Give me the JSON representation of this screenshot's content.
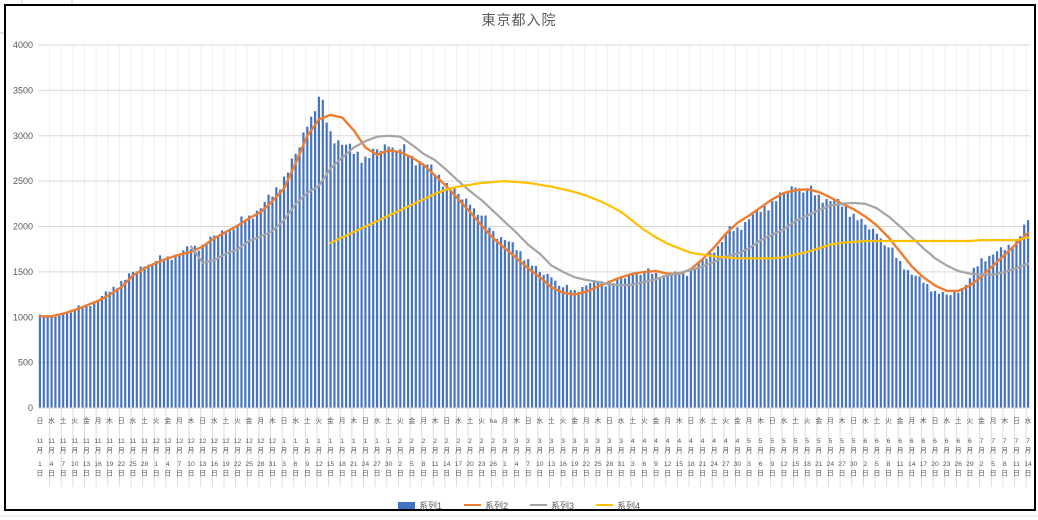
{
  "frame": {
    "background": "#ffffff",
    "border_color": "#000000",
    "gridline_color": "#d9d9d9",
    "minor_vline_color": "#f1f1f1",
    "axis_text_color": "#595959"
  },
  "chart": {
    "title": "東京都入院"
  },
  "chart_data": {
    "type": "bar",
    "title": "東京都入院",
    "ylim": [
      0,
      4000
    ],
    "y_tick_step": 500,
    "y_tick_labels": [
      "0",
      "500",
      "1000",
      "1500",
      "2000",
      "2500",
      "3000",
      "3500",
      "4000"
    ],
    "grid": true,
    "legend_position": "bottom",
    "x_note": "daily bars Nov 1 2020 - Jul 14 2021; axis labels every 3 days as [weekday, month, day]; series values sampled at each label",
    "categories": [
      [
        "日",
        11,
        1
      ],
      [
        "水",
        11,
        4
      ],
      [
        "土",
        11,
        7
      ],
      [
        "火",
        11,
        10
      ],
      [
        "金",
        11,
        13
      ],
      [
        "月",
        11,
        16
      ],
      [
        "木",
        11,
        19
      ],
      [
        "日",
        11,
        22
      ],
      [
        "水",
        11,
        25
      ],
      [
        "土",
        11,
        28
      ],
      [
        "火",
        12,
        1
      ],
      [
        "金",
        12,
        4
      ],
      [
        "月",
        12,
        7
      ],
      [
        "木",
        12,
        10
      ],
      [
        "日",
        12,
        13
      ],
      [
        "水",
        12,
        16
      ],
      [
        "土",
        12,
        19
      ],
      [
        "火",
        12,
        22
      ],
      [
        "金",
        12,
        25
      ],
      [
        "月",
        12,
        28
      ],
      [
        "木",
        12,
        31
      ],
      [
        "日",
        1,
        3
      ],
      [
        "水",
        1,
        6
      ],
      [
        "土",
        1,
        9
      ],
      [
        "火",
        1,
        12
      ],
      [
        "金",
        1,
        15
      ],
      [
        "月",
        1,
        18
      ],
      [
        "木",
        1,
        21
      ],
      [
        "日",
        1,
        24
      ],
      [
        "水",
        1,
        27
      ],
      [
        "土",
        1,
        30
      ],
      [
        "火",
        2,
        2
      ],
      [
        "金",
        2,
        5
      ],
      [
        "月",
        2,
        8
      ],
      [
        "木",
        2,
        11
      ],
      [
        "日",
        2,
        14
      ],
      [
        "水",
        2,
        17
      ],
      [
        "土",
        2,
        20
      ],
      [
        "火",
        2,
        23
      ],
      [
        "ha",
        2,
        26
      ],
      [
        "月",
        3,
        1
      ],
      [
        "木",
        3,
        4
      ],
      [
        "日",
        3,
        7
      ],
      [
        "水",
        3,
        10
      ],
      [
        "土",
        3,
        13
      ],
      [
        "火",
        3,
        16
      ],
      [
        "金",
        3,
        19
      ],
      [
        "月",
        3,
        22
      ],
      [
        "木",
        3,
        25
      ],
      [
        "日",
        3,
        28
      ],
      [
        "水",
        3,
        31
      ],
      [
        "土",
        4,
        3
      ],
      [
        "火",
        4,
        6
      ],
      [
        "金",
        4,
        9
      ],
      [
        "月",
        4,
        12
      ],
      [
        "木",
        4,
        15
      ],
      [
        "日",
        4,
        18
      ],
      [
        "水",
        4,
        21
      ],
      [
        "土",
        4,
        24
      ],
      [
        "火",
        4,
        27
      ],
      [
        "金",
        4,
        30
      ],
      [
        "月",
        5,
        3
      ],
      [
        "木",
        5,
        6
      ],
      [
        "日",
        5,
        9
      ],
      [
        "水",
        5,
        12
      ],
      [
        "土",
        5,
        15
      ],
      [
        "火",
        5,
        18
      ],
      [
        "金",
        5,
        21
      ],
      [
        "月",
        5,
        24
      ],
      [
        "木",
        5,
        27
      ],
      [
        "日",
        5,
        30
      ],
      [
        "水",
        6,
        2
      ],
      [
        "土",
        6,
        5
      ],
      [
        "火",
        6,
        8
      ],
      [
        "金",
        6,
        11
      ],
      [
        "月",
        6,
        14
      ],
      [
        "木",
        6,
        17
      ],
      [
        "日",
        6,
        20
      ],
      [
        "水",
        6,
        23
      ],
      [
        "土",
        6,
        26
      ],
      [
        "火",
        6,
        29
      ],
      [
        "金",
        7,
        2
      ],
      [
        "月",
        7,
        5
      ],
      [
        "木",
        7,
        8
      ],
      [
        "日",
        7,
        11
      ],
      [
        "水",
        7,
        14
      ]
    ],
    "series": [
      {
        "name": "系列1",
        "type": "bar",
        "color": "#4472C4",
        "values": [
          1030,
          1000,
          1040,
          1080,
          1140,
          1190,
          1280,
          1400,
          1500,
          1560,
          1620,
          1670,
          1700,
          1750,
          1800,
          1900,
          1950,
          2020,
          2120,
          2200,
          2330,
          2550,
          2800,
          3100,
          3430,
          3050,
          2900,
          2800,
          2770,
          2850,
          2880,
          2850,
          2780,
          2690,
          2570,
          2480,
          2360,
          2240,
          2120,
          1950,
          1850,
          1740,
          1640,
          1500,
          1440,
          1330,
          1300,
          1350,
          1380,
          1380,
          1430,
          1470,
          1500,
          1490,
          1450,
          1470,
          1510,
          1640,
          1710,
          1930,
          1990,
          2080,
          2160,
          2280,
          2380,
          2430,
          2400,
          2350,
          2280,
          2220,
          2140,
          2020,
          1920,
          1770,
          1620,
          1470,
          1380,
          1290,
          1250,
          1270,
          1430,
          1650,
          1690,
          1740,
          1850,
          2070
        ]
      },
      {
        "name": "系列2",
        "type": "line",
        "color": "#ED7D31",
        "values": [
          1010,
          1010,
          1040,
          1080,
          1130,
          1180,
          1250,
          1330,
          1460,
          1540,
          1600,
          1650,
          1690,
          1720,
          1780,
          1870,
          1940,
          2010,
          2090,
          2160,
          2280,
          2420,
          2700,
          3000,
          3180,
          3230,
          3200,
          3060,
          2870,
          2790,
          2840,
          2820,
          2760,
          2680,
          2560,
          2440,
          2300,
          2160,
          2010,
          1870,
          1760,
          1650,
          1540,
          1440,
          1330,
          1270,
          1250,
          1280,
          1340,
          1390,
          1440,
          1480,
          1500,
          1510,
          1480,
          1480,
          1530,
          1640,
          1770,
          1920,
          2040,
          2120,
          2210,
          2300,
          2370,
          2400,
          2410,
          2380,
          2320,
          2250,
          2190,
          2110,
          2010,
          1880,
          1720,
          1560,
          1440,
          1350,
          1290,
          1290,
          1350,
          1450,
          1570,
          1690,
          1810,
          1930
        ]
      },
      {
        "name": "系列3",
        "type": "line",
        "color": "#A5A5A5",
        "values": [
          null,
          null,
          null,
          null,
          null,
          null,
          null,
          null,
          null,
          null,
          null,
          null,
          null,
          1780,
          1600,
          1630,
          1700,
          1750,
          1840,
          1890,
          1950,
          2070,
          2250,
          2370,
          2450,
          2640,
          2760,
          2870,
          2940,
          2990,
          3000,
          2990,
          2900,
          2800,
          2730,
          2620,
          2500,
          2390,
          2290,
          2170,
          2050,
          1930,
          1800,
          1700,
          1570,
          1500,
          1440,
          1410,
          1390,
          1360,
          1350,
          1360,
          1390,
          1420,
          1460,
          1490,
          1520,
          1560,
          1610,
          1670,
          1700,
          1760,
          1850,
          1910,
          1970,
          2060,
          2120,
          2180,
          2230,
          2250,
          2260,
          2250,
          2200,
          2110,
          2000,
          1880,
          1760,
          1650,
          1570,
          1510,
          1480,
          1470,
          1470,
          1500,
          1540,
          1590
        ]
      },
      {
        "name": "系列4",
        "type": "line",
        "color": "#FFC000",
        "values": [
          null,
          null,
          null,
          null,
          null,
          null,
          null,
          null,
          null,
          null,
          null,
          null,
          null,
          null,
          null,
          null,
          null,
          null,
          null,
          null,
          null,
          null,
          null,
          null,
          null,
          1820,
          1880,
          1940,
          2000,
          2060,
          2120,
          2180,
          2240,
          2300,
          2360,
          2410,
          2440,
          2460,
          2480,
          2490,
          2500,
          2490,
          2480,
          2460,
          2440,
          2410,
          2380,
          2340,
          2290,
          2230,
          2160,
          2060,
          1960,
          1880,
          1810,
          1760,
          1710,
          1690,
          1670,
          1660,
          1650,
          1650,
          1650,
          1650,
          1660,
          1690,
          1720,
          1760,
          1800,
          1820,
          1830,
          1840,
          1840,
          1840,
          1840,
          1840,
          1840,
          1840,
          1840,
          1840,
          1840,
          1850,
          1850,
          1850,
          1850,
          1880
        ]
      }
    ]
  }
}
